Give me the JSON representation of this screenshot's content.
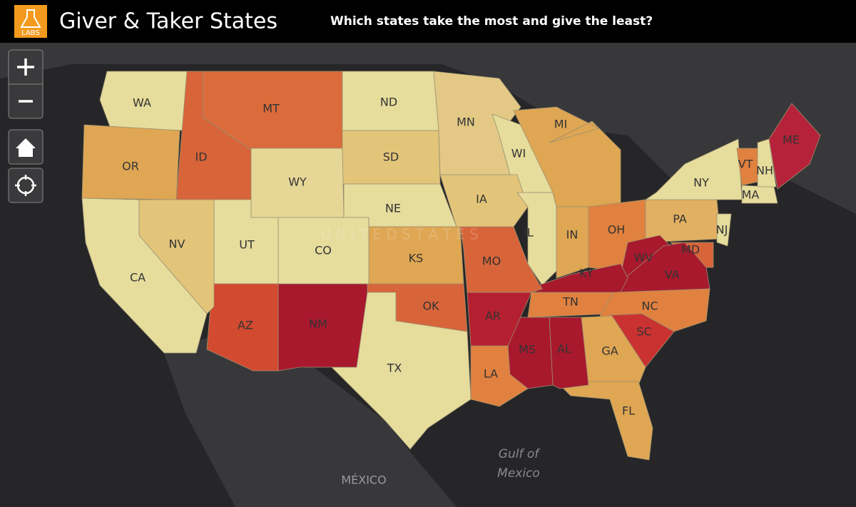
{
  "header": {
    "logo_text": "LABS",
    "title": "Giver & Taker States",
    "subtitle": "Which states take the most and give the least?"
  },
  "map_labels": {
    "country": "U N I T E D   S T A T E S",
    "gulf_line1": "Gulf of",
    "gulf_line2": "Mexico",
    "mexico": "MÉXICO"
  },
  "states": [
    {
      "label": "WA",
      "color": "#e6dc9c"
    },
    {
      "label": "OR",
      "color": "#dfa653"
    },
    {
      "label": "ID",
      "color": "#d8643a"
    },
    {
      "label": "MT",
      "color": "#db6b3b"
    },
    {
      "label": "ND",
      "color": "#e6dc9c"
    },
    {
      "label": "SD",
      "color": "#e3c57a"
    },
    {
      "label": "WY",
      "color": "#e6d796"
    },
    {
      "label": "NE",
      "color": "#e6dc9c"
    },
    {
      "label": "MN",
      "color": "#e3c985"
    },
    {
      "label": "WI",
      "color": "#e6dc9c"
    },
    {
      "label": "IA",
      "color": "#e3c57a"
    },
    {
      "label": "IL",
      "color": "#e6dc9c"
    },
    {
      "label": "MI",
      "color": "#dfa653"
    },
    {
      "label": "IN",
      "color": "#dfa653"
    },
    {
      "label": "OH",
      "color": "#e0813f"
    },
    {
      "label": "PA",
      "color": "#e2b062"
    },
    {
      "label": "NY",
      "color": "#e6dc9c"
    },
    {
      "label": "VT",
      "color": "#e0813f"
    },
    {
      "label": "ME",
      "color": "#b5223a"
    },
    {
      "label": "MA",
      "color": "#e6dc9c"
    },
    {
      "label": "NJ",
      "color": "#e6dc9c"
    },
    {
      "label": "MD",
      "color": "#d8643a"
    },
    {
      "label": "WV",
      "color": "#a8192e"
    },
    {
      "label": "VA",
      "color": "#a8192e"
    },
    {
      "label": "KY",
      "color": "#a8192e"
    },
    {
      "label": "TN",
      "color": "#e0813f"
    },
    {
      "label": "NC",
      "color": "#e0813f"
    },
    {
      "label": "SC",
      "color": "#c93230"
    },
    {
      "label": "GA",
      "color": "#dfa653"
    },
    {
      "label": "FL",
      "color": "#dfa653"
    },
    {
      "label": "AL",
      "color": "#a8192e"
    },
    {
      "label": "MS",
      "color": "#a8192e"
    },
    {
      "label": "LA",
      "color": "#e0813f"
    },
    {
      "label": "AR",
      "color": "#b52030"
    },
    {
      "label": "MO",
      "color": "#d8643a"
    },
    {
      "label": "KS",
      "color": "#dfa653"
    },
    {
      "label": "OK",
      "color": "#d8643a"
    },
    {
      "label": "TX",
      "color": "#e6dc9c"
    },
    {
      "label": "NM",
      "color": "#a8192e"
    },
    {
      "label": "CO",
      "color": "#e6dc9c"
    },
    {
      "label": "UT",
      "color": "#e6dc9c"
    },
    {
      "label": "AZ",
      "color": "#d24a30"
    },
    {
      "label": "NV",
      "color": "#e3c57a"
    },
    {
      "label": "CA",
      "color": "#e6dc9c"
    },
    {
      "label": "NH",
      "color": "#e6dc9c"
    }
  ]
}
